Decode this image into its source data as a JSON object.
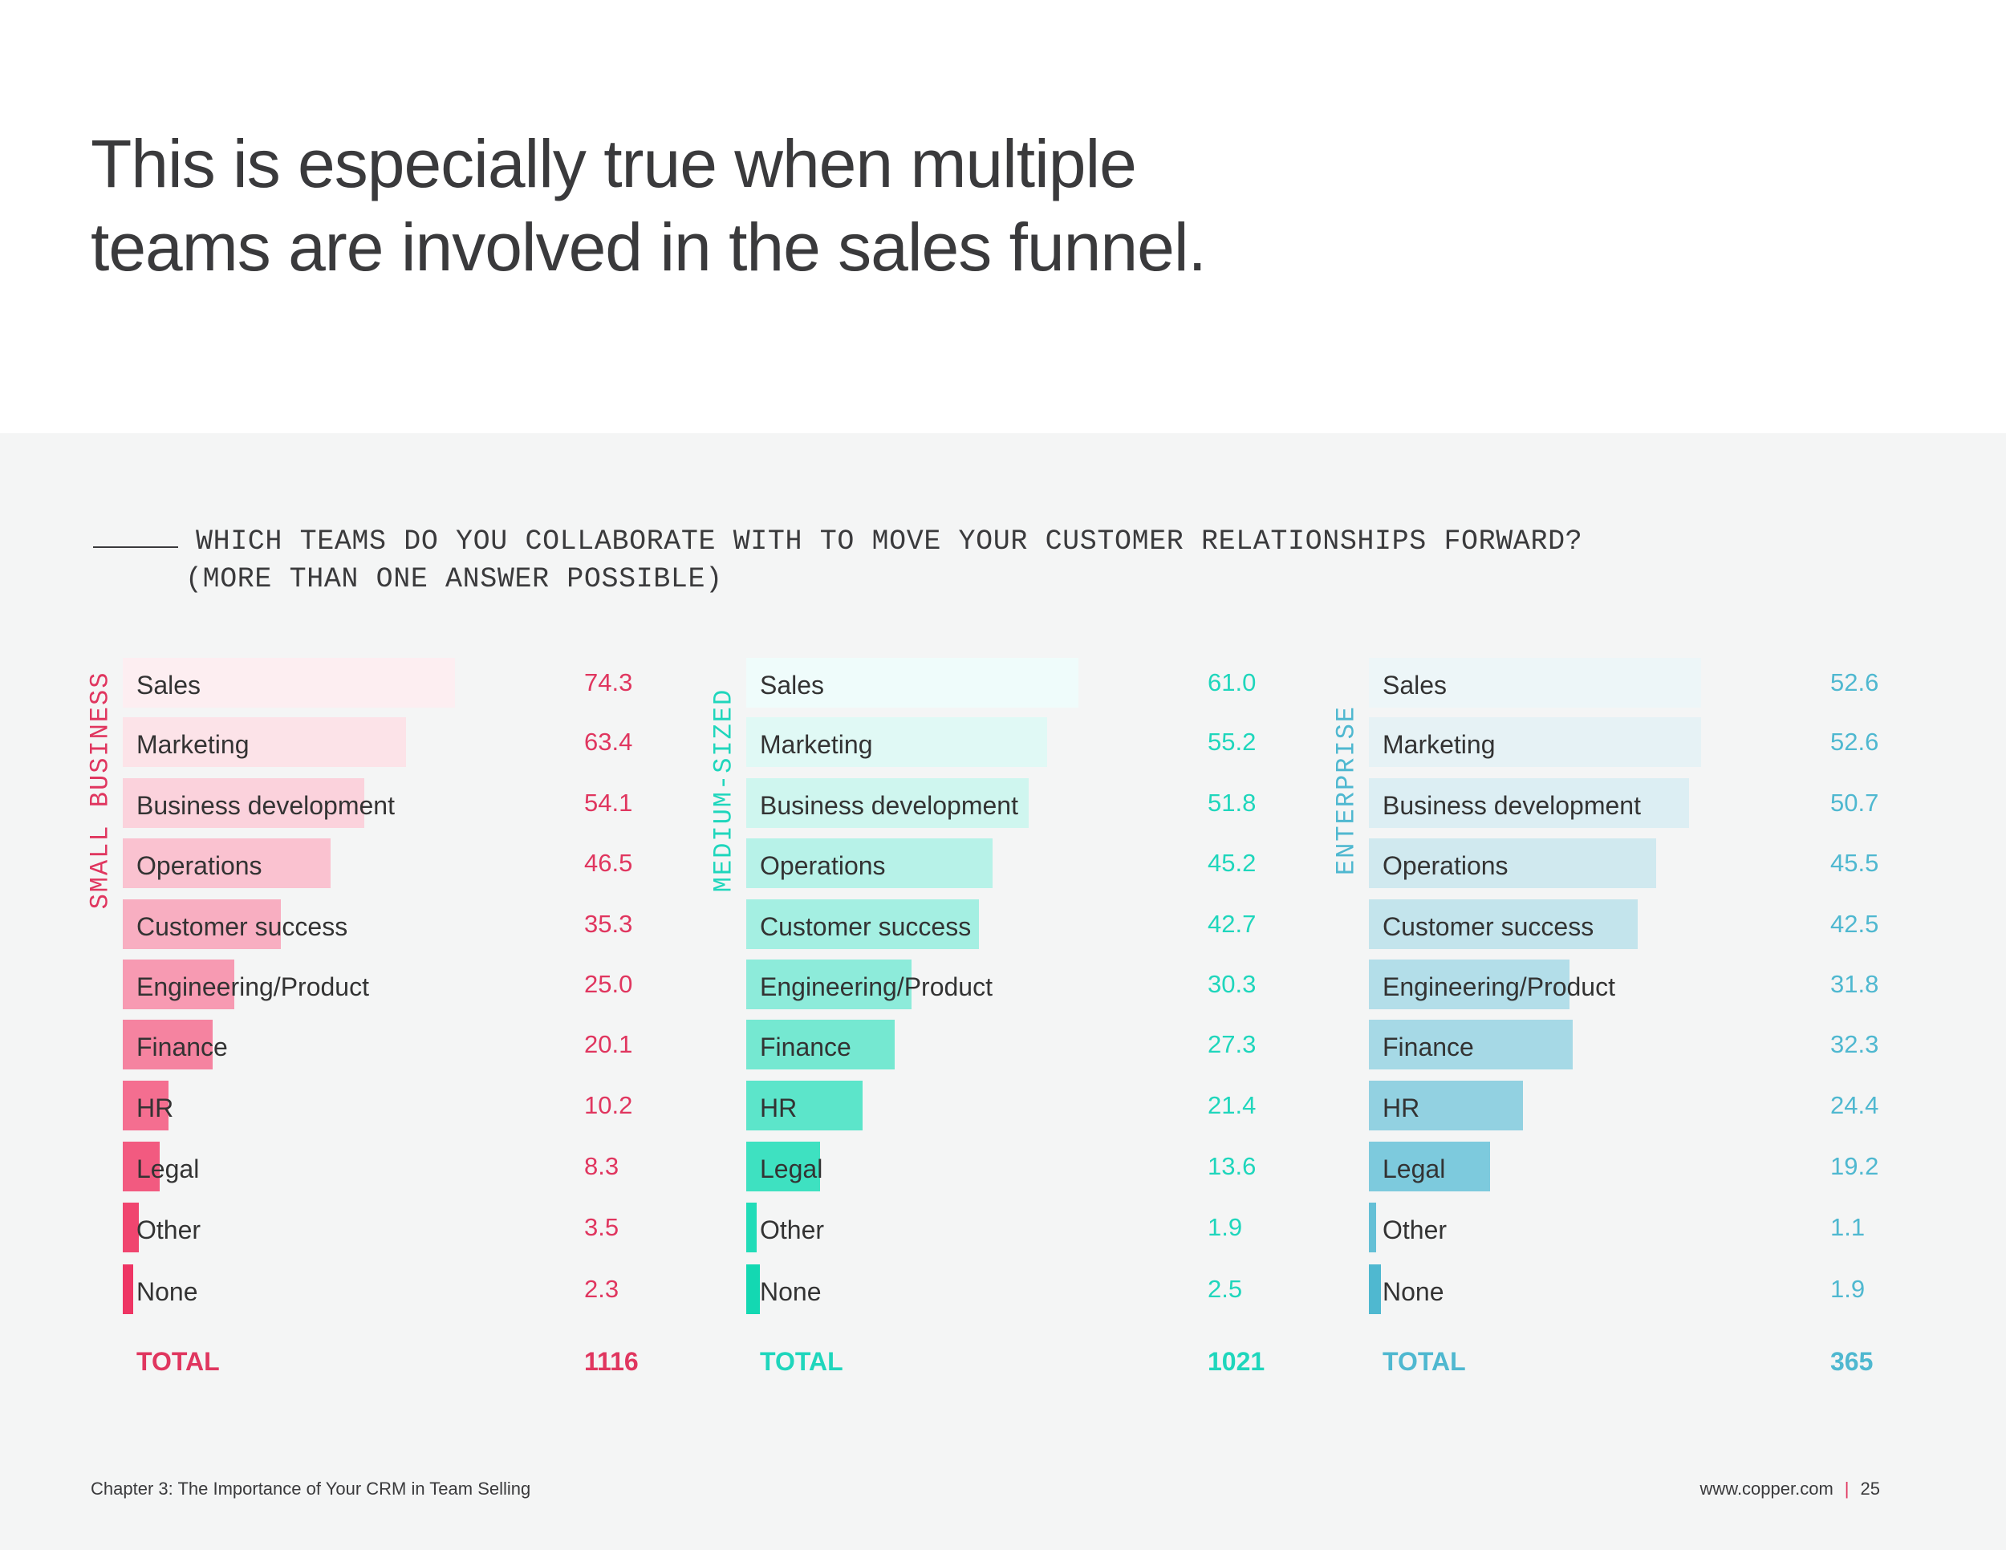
{
  "headline": {
    "line1": "This is especially true when multiple",
    "line2": "teams are involved in the sales funnel."
  },
  "question": {
    "line1": "WHICH TEAMS DO YOU COLLABORATE WITH TO MOVE YOUR CUSTOMER RELATIONSHIPS FORWARD?",
    "line2": "(MORE THAN ONE ANSWER POSSIBLE)"
  },
  "chart_data": [
    {
      "type": "bar",
      "orientation": "horizontal",
      "segment": "SMALL BUSINESS",
      "color": "#e0365f",
      "bar_colors": [
        "#fdeef1",
        "#fce3e8",
        "#fbd2dc",
        "#fac2d0",
        "#f8aec1",
        "#f79ab2",
        "#f583a0",
        "#f46e90",
        "#f25a80",
        "#f0456f",
        "#ee3564"
      ],
      "categories": [
        "Sales",
        "Marketing",
        "Business development",
        "Operations",
        "Customer success",
        "Engineering/Product",
        "Finance",
        "HR",
        "Legal",
        "Other",
        "None"
      ],
      "values": [
        74.3,
        63.4,
        54.1,
        46.5,
        35.3,
        25.0,
        20.1,
        10.2,
        8.3,
        3.5,
        2.3
      ],
      "value_labels": [
        "74.3",
        "63.4",
        "54.1",
        "46.5",
        "35.3",
        "25.0",
        "20.1",
        "10.2",
        "8.3",
        "3.5",
        "2.3"
      ],
      "total_label": "TOTAL",
      "total": "1116",
      "xlim": [
        0,
        74.3
      ]
    },
    {
      "type": "bar",
      "orientation": "horizontal",
      "segment": "MEDIUM-SIZED",
      "color": "#1fd6bc",
      "bar_colors": [
        "#effcfb",
        "#e0f9f5",
        "#cff6ef",
        "#b7f2e8",
        "#a4efe2",
        "#8debda",
        "#75e8d1",
        "#5ce5ca",
        "#3ee1c1",
        "#21dcb8",
        "#13d8b2"
      ],
      "categories": [
        "Sales",
        "Marketing",
        "Business development",
        "Operations",
        "Customer success",
        "Engineering/Product",
        "Finance",
        "HR",
        "Legal",
        "Other",
        "None"
      ],
      "values": [
        61.0,
        55.2,
        51.8,
        45.2,
        42.7,
        30.3,
        27.3,
        21.4,
        13.6,
        1.9,
        2.5
      ],
      "value_labels": [
        "61.0",
        "55.2",
        "51.8",
        "45.2",
        "42.7",
        "30.3",
        "27.3",
        "21.4",
        "13.6",
        "1.9",
        "2.5"
      ],
      "total_label": "TOTAL",
      "total": "1021",
      "xlim": [
        0,
        61.0
      ]
    },
    {
      "type": "bar",
      "orientation": "horizontal",
      "segment": "ENTERPRISE",
      "color": "#4fb8d0",
      "bar_colors": [
        "#edf6f8",
        "#e6f2f5",
        "#dceef3",
        "#d0e9ef",
        "#c3e4ec",
        "#b3dee9",
        "#a6d9e6",
        "#92d1e1",
        "#7dcadd",
        "#64c0d6",
        "#4fb8d0"
      ],
      "categories": [
        "Sales",
        "Marketing",
        "Business development",
        "Operations",
        "Customer success",
        "Engineering/Product",
        "Finance",
        "HR",
        "Legal",
        "Other",
        "None"
      ],
      "values": [
        52.6,
        52.6,
        50.7,
        45.5,
        42.5,
        31.8,
        32.3,
        24.4,
        19.2,
        1.1,
        1.9
      ],
      "value_labels": [
        "52.6",
        "52.6",
        "50.7",
        "45.5",
        "42.5",
        "31.8",
        "32.3",
        "24.4",
        "19.2",
        "1.1",
        "1.9"
      ],
      "total_label": "TOTAL",
      "total": "365",
      "xlim": [
        0,
        52.6
      ]
    }
  ],
  "footer": {
    "chapter": "Chapter 3: The Importance of Your CRM in Team Selling",
    "url": "www.copper.com",
    "separator": "|",
    "page_number": "25"
  }
}
